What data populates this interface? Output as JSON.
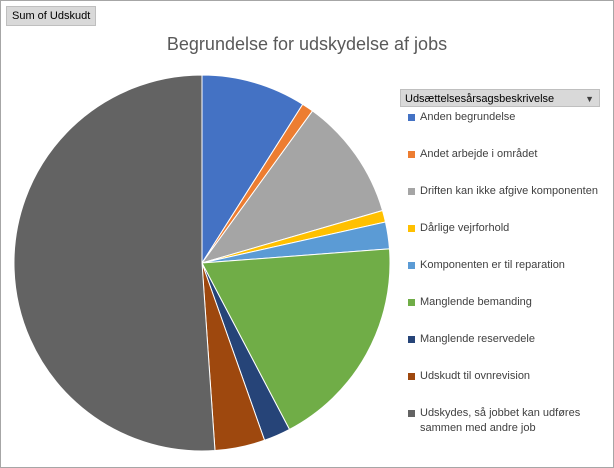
{
  "field_button": "Sum of Udskudt",
  "legend_header": "Udsættelsesårsagsbeskrivelse",
  "chart_data": {
    "type": "pie",
    "title": "Begrundelse for udskydelse af jobs",
    "legend_placement": "right",
    "slices": [
      {
        "label": "Anden begrundelse",
        "value": 9.0,
        "color": "#4472c4"
      },
      {
        "label": "Andet arbejde i området",
        "value": 1.0,
        "color": "#ed7d31"
      },
      {
        "label": "Driften kan ikke afgive komponenten",
        "value": 10.5,
        "color": "#a5a5a5"
      },
      {
        "label": "Dårlige vejrforhold",
        "value": 1.0,
        "color": "#ffc000"
      },
      {
        "label": "Komponenten er til reparation",
        "value": 2.3,
        "color": "#5b9bd5"
      },
      {
        "label": "Manglende bemanding",
        "value": 18.5,
        "color": "#70ad47"
      },
      {
        "label": "Manglende reservedele",
        "value": 2.3,
        "color": "#264478"
      },
      {
        "label": "Udskudt til ovnrevision",
        "value": 4.3,
        "color": "#9e480e"
      },
      {
        "label": "Udskydes, så jobbet kan udføres sammen med andre job",
        "value": 51.1,
        "color": "#636363"
      }
    ]
  }
}
